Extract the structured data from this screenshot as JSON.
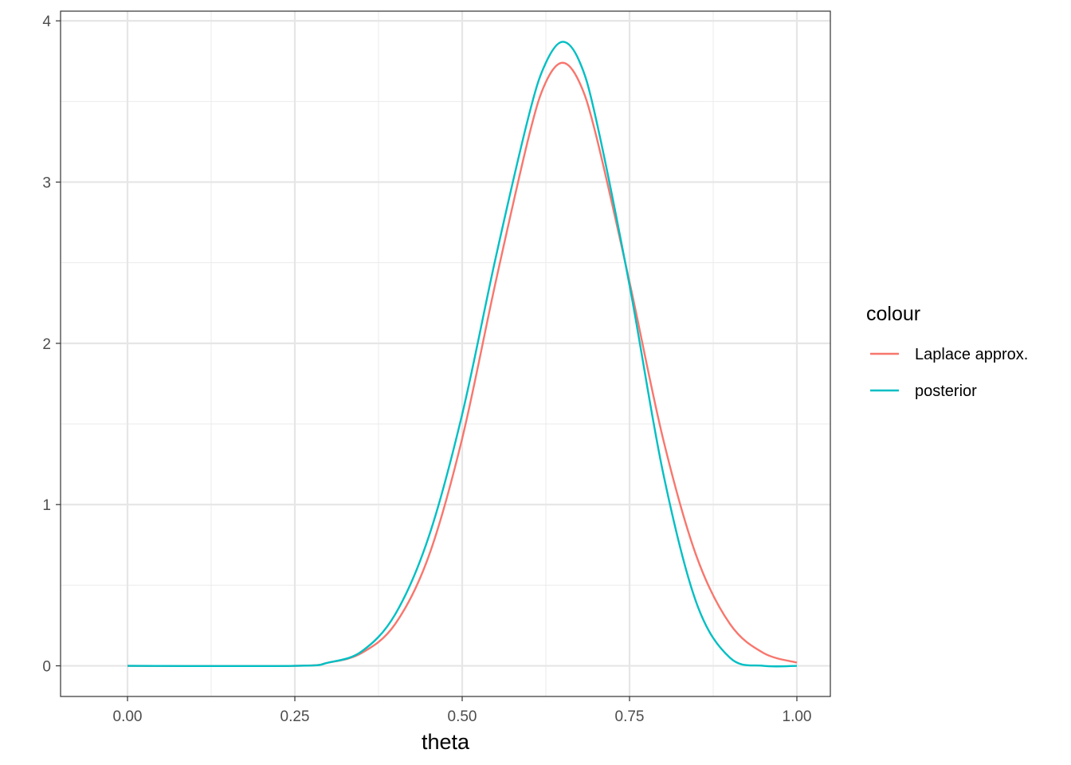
{
  "chart_data": {
    "type": "line",
    "xlabel": "theta",
    "ylabel": "",
    "xlim": [
      -0.1,
      1.05
    ],
    "ylim": [
      -0.19,
      4.06
    ],
    "x_ticks": [
      "0.00",
      "0.25",
      "0.50",
      "0.75",
      "1.00"
    ],
    "y_ticks": [
      "0",
      "1",
      "2",
      "3",
      "4"
    ],
    "grid": true,
    "legend": {
      "title": "colour",
      "position": "right"
    },
    "series": [
      {
        "name": "Laplace approx.",
        "color": "#F8766D",
        "x": [
          0.0,
          0.25,
          0.3,
          0.35,
          0.4,
          0.45,
          0.5,
          0.55,
          0.6,
          0.625,
          0.65,
          0.675,
          0.7,
          0.75,
          0.8,
          0.85,
          0.9,
          0.95,
          1.0
        ],
        "y": [
          0.0,
          0.0,
          0.02,
          0.08,
          0.26,
          0.68,
          1.41,
          2.38,
          3.29,
          3.62,
          3.74,
          3.62,
          3.29,
          2.38,
          1.41,
          0.68,
          0.26,
          0.08,
          0.02
        ]
      },
      {
        "name": "posterior",
        "color": "#00BFC4",
        "x": [
          0.0,
          0.25,
          0.3,
          0.35,
          0.4,
          0.45,
          0.5,
          0.55,
          0.6,
          0.625,
          0.65,
          0.675,
          0.7,
          0.75,
          0.8,
          0.85,
          0.9,
          0.95,
          1.0
        ],
        "y": [
          0.0,
          0.0,
          0.02,
          0.09,
          0.32,
          0.8,
          1.56,
          2.53,
          3.42,
          3.74,
          3.87,
          3.75,
          3.39,
          2.36,
          1.2,
          0.39,
          0.05,
          0.0,
          0.0
        ]
      }
    ]
  }
}
